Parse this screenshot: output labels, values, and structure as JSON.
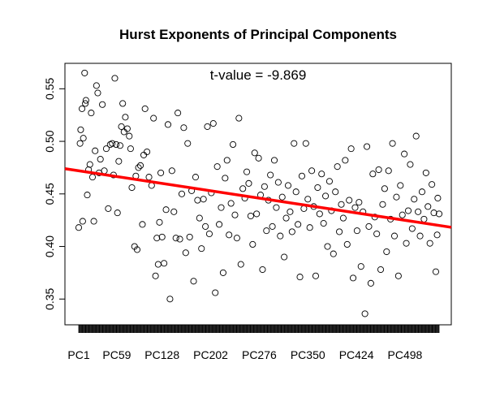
{
  "chart_data": {
    "type": "scatter",
    "title": "Hurst Exponents of Principal Components",
    "xlabel": "",
    "ylabel": "",
    "annotation": "t-value = -9.869",
    "x_tick_labels": [
      "PC1",
      "PC59",
      "PC128",
      "PC202",
      "PC276",
      "PC350",
      "PC424",
      "PC498"
    ],
    "x_tick_positions": [
      1,
      59,
      128,
      202,
      276,
      350,
      424,
      498
    ],
    "n_points": 550,
    "xlim": [
      1,
      550
    ],
    "ylim": [
      0.335,
      0.565
    ],
    "y_ticks": [
      0.35,
      0.4,
      0.45,
      0.5,
      0.55
    ],
    "y_tick_labels": [
      "0.35",
      "0.40",
      "0.45",
      "0.50",
      "0.55"
    ],
    "trend_line": {
      "color": "#ff0000",
      "y_at_x_min": 0.472,
      "y_at_x_max": 0.42
    },
    "point_color": "#000000",
    "grid": false,
    "points_sample": [
      [
        1,
        0.418
      ],
      [
        3,
        0.498
      ],
      [
        4,
        0.511
      ],
      [
        6,
        0.531
      ],
      [
        7,
        0.424
      ],
      [
        8,
        0.503
      ],
      [
        10,
        0.565
      ],
      [
        11,
        0.536
      ],
      [
        12,
        0.539
      ],
      [
        14,
        0.449
      ],
      [
        16,
        0.473
      ],
      [
        18,
        0.478
      ],
      [
        20,
        0.527
      ],
      [
        22,
        0.466
      ],
      [
        24,
        0.424
      ],
      [
        26,
        0.491
      ],
      [
        28,
        0.553
      ],
      [
        30,
        0.546
      ],
      [
        32,
        0.47
      ],
      [
        34,
        0.483
      ],
      [
        37,
        0.535
      ],
      [
        40,
        0.472
      ],
      [
        43,
        0.493
      ],
      [
        46,
        0.436
      ],
      [
        49,
        0.497
      ],
      [
        52,
        0.498
      ],
      [
        54,
        0.468
      ],
      [
        56,
        0.56
      ],
      [
        58,
        0.497
      ],
      [
        60,
        0.432
      ],
      [
        62,
        0.481
      ],
      [
        64,
        0.496
      ],
      [
        66,
        0.514
      ],
      [
        68,
        0.536
      ],
      [
        70,
        0.509
      ],
      [
        72,
        0.523
      ],
      [
        75,
        0.512
      ],
      [
        78,
        0.505
      ],
      [
        80,
        0.493
      ],
      [
        82,
        0.456
      ],
      [
        86,
        0.4
      ],
      [
        88,
        0.467
      ],
      [
        90,
        0.397
      ],
      [
        92,
        0.475
      ],
      [
        95,
        0.477
      ],
      [
        98,
        0.421
      ],
      [
        100,
        0.487
      ],
      [
        102,
        0.531
      ],
      [
        105,
        0.49
      ],
      [
        108,
        0.466
      ],
      [
        112,
        0.458
      ],
      [
        115,
        0.522
      ],
      [
        118,
        0.372
      ],
      [
        120,
        0.408
      ],
      [
        122,
        0.383
      ],
      [
        124,
        0.423
      ],
      [
        126,
        0.47
      ],
      [
        128,
        0.409
      ],
      [
        131,
        0.384
      ],
      [
        134,
        0.435
      ],
      [
        137,
        0.516
      ],
      [
        140,
        0.35
      ],
      [
        143,
        0.472
      ],
      [
        146,
        0.433
      ],
      [
        149,
        0.408
      ],
      [
        152,
        0.527
      ],
      [
        155,
        0.407
      ],
      [
        158,
        0.45
      ],
      [
        161,
        0.513
      ],
      [
        164,
        0.394
      ],
      [
        167,
        0.498
      ],
      [
        170,
        0.409
      ],
      [
        173,
        0.453
      ],
      [
        176,
        0.367
      ],
      [
        179,
        0.466
      ],
      [
        182,
        0.444
      ],
      [
        185,
        0.427
      ],
      [
        188,
        0.398
      ],
      [
        191,
        0.445
      ],
      [
        194,
        0.419
      ],
      [
        197,
        0.514
      ],
      [
        200,
        0.412
      ],
      [
        203,
        0.451
      ],
      [
        206,
        0.517
      ],
      [
        209,
        0.356
      ],
      [
        212,
        0.476
      ],
      [
        215,
        0.421
      ],
      [
        218,
        0.437
      ],
      [
        221,
        0.375
      ],
      [
        224,
        0.465
      ],
      [
        227,
        0.482
      ],
      [
        230,
        0.411
      ],
      [
        233,
        0.441
      ],
      [
        236,
        0.497
      ],
      [
        239,
        0.43
      ],
      [
        242,
        0.408
      ],
      [
        245,
        0.522
      ],
      [
        248,
        0.383
      ],
      [
        251,
        0.455
      ],
      [
        254,
        0.446
      ],
      [
        257,
        0.471
      ],
      [
        260,
        0.46
      ],
      [
        263,
        0.429
      ],
      [
        266,
        0.402
      ],
      [
        269,
        0.489
      ],
      [
        272,
        0.431
      ],
      [
        275,
        0.484
      ],
      [
        278,
        0.449
      ],
      [
        281,
        0.378
      ],
      [
        284,
        0.457
      ],
      [
        287,
        0.415
      ],
      [
        290,
        0.444
      ],
      [
        293,
        0.468
      ],
      [
        296,
        0.419
      ],
      [
        299,
        0.482
      ],
      [
        302,
        0.437
      ],
      [
        305,
        0.461
      ],
      [
        308,
        0.41
      ],
      [
        311,
        0.447
      ],
      [
        314,
        0.39
      ],
      [
        317,
        0.427
      ],
      [
        320,
        0.458
      ],
      [
        323,
        0.433
      ],
      [
        326,
        0.414
      ],
      [
        329,
        0.498
      ],
      [
        332,
        0.452
      ],
      [
        335,
        0.421
      ],
      [
        338,
        0.371
      ],
      [
        341,
        0.467
      ],
      [
        344,
        0.436
      ],
      [
        347,
        0.498
      ],
      [
        350,
        0.445
      ],
      [
        353,
        0.418
      ],
      [
        356,
        0.472
      ],
      [
        359,
        0.438
      ],
      [
        362,
        0.372
      ],
      [
        365,
        0.456
      ],
      [
        368,
        0.431
      ],
      [
        371,
        0.469
      ],
      [
        374,
        0.422
      ],
      [
        377,
        0.448
      ],
      [
        380,
        0.4
      ],
      [
        383,
        0.462
      ],
      [
        386,
        0.434
      ],
      [
        389,
        0.393
      ],
      [
        392,
        0.452
      ],
      [
        395,
        0.476
      ],
      [
        398,
        0.414
      ],
      [
        401,
        0.44
      ],
      [
        404,
        0.427
      ],
      [
        407,
        0.482
      ],
      [
        410,
        0.402
      ],
      [
        413,
        0.444
      ],
      [
        416,
        0.493
      ],
      [
        419,
        0.37
      ],
      [
        422,
        0.437
      ],
      [
        425,
        0.415
      ],
      [
        428,
        0.442
      ],
      [
        431,
        0.381
      ],
      [
        434,
        0.433
      ],
      [
        437,
        0.336
      ],
      [
        440,
        0.495
      ],
      [
        443,
        0.419
      ],
      [
        446,
        0.365
      ],
      [
        449,
        0.469
      ],
      [
        452,
        0.428
      ],
      [
        455,
        0.412
      ],
      [
        458,
        0.473
      ],
      [
        461,
        0.378
      ],
      [
        464,
        0.44
      ],
      [
        467,
        0.455
      ],
      [
        470,
        0.395
      ],
      [
        473,
        0.472
      ],
      [
        476,
        0.426
      ],
      [
        479,
        0.498
      ],
      [
        482,
        0.41
      ],
      [
        485,
        0.447
      ],
      [
        488,
        0.372
      ],
      [
        491,
        0.458
      ],
      [
        494,
        0.43
      ],
      [
        497,
        0.488
      ],
      [
        500,
        0.403
      ],
      [
        503,
        0.434
      ],
      [
        506,
        0.478
      ],
      [
        509,
        0.417
      ],
      [
        512,
        0.445
      ],
      [
        515,
        0.505
      ],
      [
        518,
        0.433
      ],
      [
        521,
        0.41
      ],
      [
        524,
        0.452
      ],
      [
        527,
        0.426
      ],
      [
        530,
        0.47
      ],
      [
        533,
        0.438
      ],
      [
        536,
        0.403
      ],
      [
        539,
        0.459
      ],
      [
        542,
        0.432
      ],
      [
        545,
        0.376
      ],
      [
        547,
        0.411
      ],
      [
        548,
        0.446
      ],
      [
        550,
        0.431
      ]
    ]
  }
}
